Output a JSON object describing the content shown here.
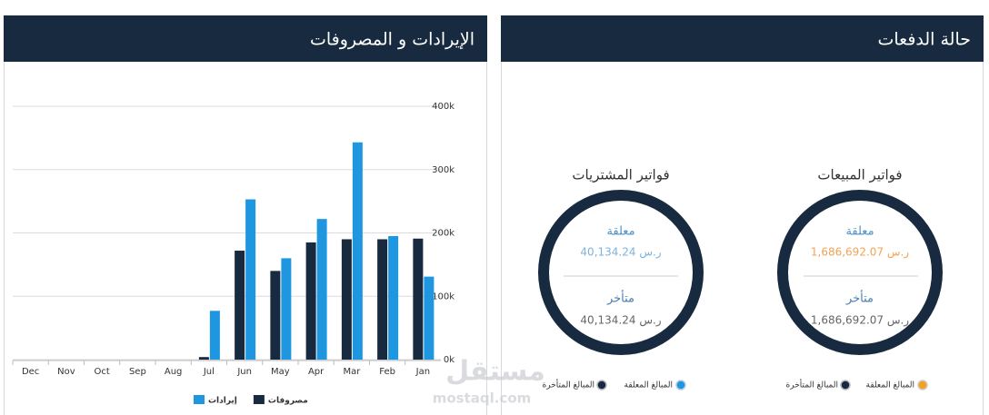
{
  "chart_data": {
    "type": "bar",
    "title": "الإيرادات و المصروفات",
    "categories": [
      "Jan",
      "Feb",
      "Mar",
      "Apr",
      "May",
      "Jun",
      "Jul",
      "Aug",
      "Sep",
      "Oct",
      "Nov",
      "Dec"
    ],
    "series": [
      {
        "name": "مصروفات",
        "color": "#182a40",
        "values": [
          191,
          190,
          190,
          185,
          140,
          172,
          4,
          0,
          0,
          0,
          0,
          0
        ]
      },
      {
        "name": "إيرادات",
        "color": "#1e97e0",
        "values": [
          131,
          195,
          343,
          222,
          160,
          253,
          77,
          0,
          0,
          0,
          0,
          0
        ]
      }
    ],
    "ylim": [
      0,
      400
    ],
    "yticks": [
      {
        "value": 0,
        "label": "0k"
      },
      {
        "value": 100,
        "label": "100k"
      },
      {
        "value": 200,
        "label": "200k"
      },
      {
        "value": 300,
        "label": "300k"
      },
      {
        "value": 400,
        "label": "400k"
      }
    ],
    "grid": true
  },
  "payments": {
    "title": "حالة الدفعات",
    "purchases": {
      "title": "فواتير المشتريات",
      "pending_label": "معلقة",
      "pending_amount": "ر.س 40,134.24",
      "late_label": "متأخر",
      "late_amount": "ر.س 40,134.24",
      "legend_pending": "المبالغ المعلقة",
      "legend_late": "المبالغ المتأخرة"
    },
    "sales": {
      "title": "فواتير المبيعات",
      "pending_label": "معلقة",
      "pending_amount": "ر.س 1,686,692.07",
      "late_label": "متأخر",
      "late_amount": "ر.س 1,686,692.07",
      "legend_pending": "المبالغ المعلقة",
      "legend_late": "المبالغ المتأخرة"
    }
  },
  "watermark": {
    "name": "مستقل",
    "url": "mostaql.com"
  }
}
